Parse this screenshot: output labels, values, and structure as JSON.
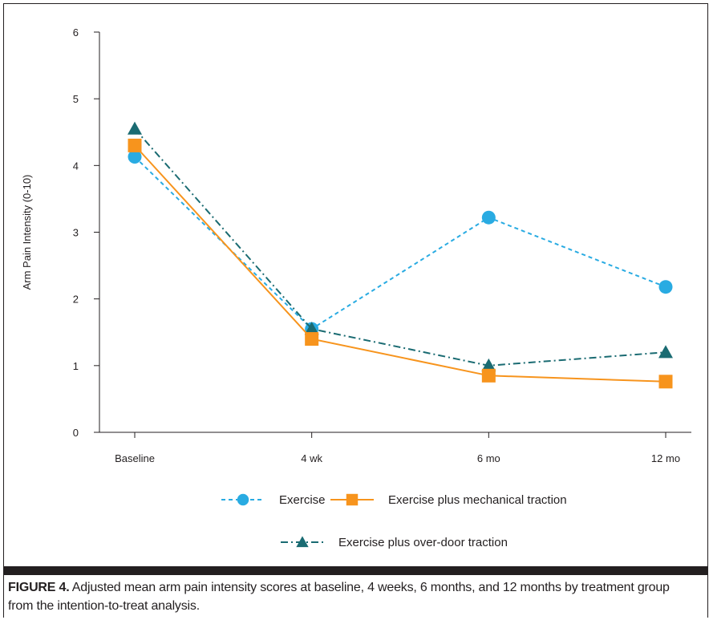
{
  "chart_data": {
    "type": "line",
    "categories": [
      "Baseline",
      "4 wk",
      "6 mo",
      "12 mo"
    ],
    "ylabel": "Arm Pain Intensity (0-10)",
    "xlabel": "",
    "ylim": [
      0,
      6
    ],
    "yticks": [
      "0",
      "1",
      "2",
      "3",
      "4",
      "5",
      "6"
    ],
    "grid": false,
    "legend_position": "bottom",
    "series": [
      {
        "name": "Exercise",
        "values": [
          4.13,
          1.55,
          3.22,
          2.18
        ],
        "color": "#29abe2",
        "marker": "circle",
        "line": "dashed"
      },
      {
        "name": "Exercise plus mechanical traction",
        "values": [
          4.3,
          1.4,
          0.85,
          0.76
        ],
        "color": "#f7941d",
        "marker": "square",
        "line": "solid"
      },
      {
        "name": "Exercise plus over-door traction",
        "values": [
          4.55,
          1.55,
          1.0,
          1.2
        ],
        "color": "#1a6b72",
        "marker": "triangle",
        "line": "dashdot"
      }
    ]
  },
  "caption": {
    "label": "FIGURE 4.",
    "text": " Adjusted mean arm pain intensity scores at baseline, 4 weeks, 6 months, and 12 months by treatment group from the intention-to-treat analysis."
  }
}
